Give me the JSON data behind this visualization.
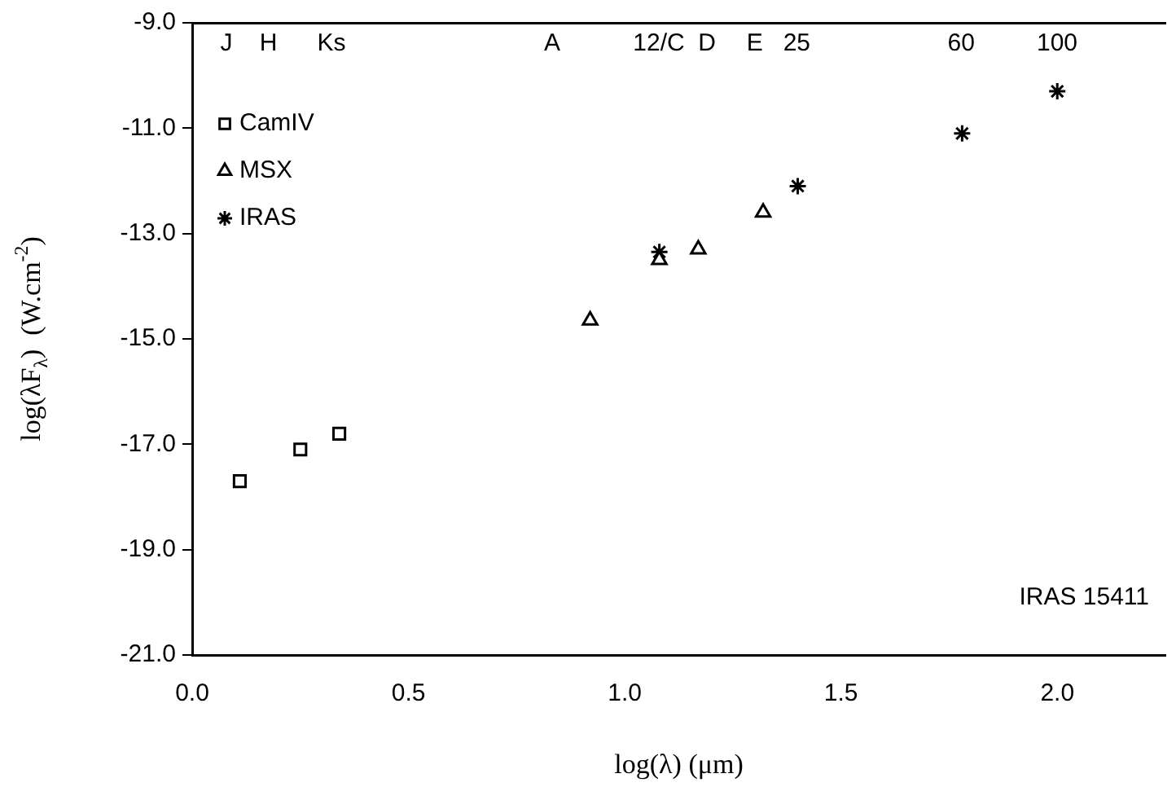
{
  "chart_data": {
    "type": "scatter",
    "xlabel": "log(λ) (μm)",
    "ylabel": "log(λF$_{λ}$)  (W.cm$^{-2}$)",
    "xlim": [
      0,
      2.25
    ],
    "ylim": [
      -21,
      -9
    ],
    "xticks": [
      {
        "value": 0,
        "label": "0.0"
      },
      {
        "value": 0.5,
        "label": "0.5"
      },
      {
        "value": 1,
        "label": "1.0"
      },
      {
        "value": 1.5,
        "label": "1.5"
      },
      {
        "value": 2,
        "label": "2.0"
      }
    ],
    "yticks": [
      {
        "value": -21,
        "label": "-21.0"
      },
      {
        "value": -19,
        "label": "-19.0"
      },
      {
        "value": -17,
        "label": "-17.0"
      },
      {
        "value": -15,
        "label": "-15.0"
      },
      {
        "value": -13,
        "label": "-13.0"
      },
      {
        "value": -11,
        "label": "-11.0"
      },
      {
        "value": -9,
        "label": "-9.0"
      }
    ],
    "grid": false,
    "legend": "top left",
    "series": [
      {
        "name": "CamIV",
        "color": "#000000",
        "marker": "square",
        "x": [
          0.11,
          0.25,
          0.34
        ],
        "values": [
          -17.7,
          -17.1,
          -16.8
        ]
      },
      {
        "name": "MSX",
        "color": "#000000",
        "marker": "triangle",
        "x": [
          0.92,
          1.08,
          1.17,
          1.32
        ],
        "values": [
          -14.65,
          -13.5,
          -13.3,
          -12.6
        ]
      },
      {
        "name": "IRAS",
        "color": "#000000",
        "marker": "cross",
        "x": [
          1.08,
          1.4,
          1.78,
          2.0
        ],
        "values": [
          -13.35,
          -12.1,
          -11.1,
          -10.3
        ]
      }
    ],
    "log": "x2",
    "x2lim": [
      1,
      178
    ],
    "x2ticks": [
      {
        "value": 1.2,
        "label": "J"
      },
      {
        "value": 1.5,
        "label": "H"
      },
      {
        "value": 2.1,
        "label": "Ks"
      },
      {
        "value": 6.8,
        "label": "A"
      },
      {
        "value": 12,
        "label": "12/C"
      },
      {
        "value": 15.5,
        "label": "D"
      },
      {
        "value": 20,
        "label": "E"
      },
      25,
      60,
      100
    ],
    "annotations": [
      "IRAS 15411"
    ]
  }
}
